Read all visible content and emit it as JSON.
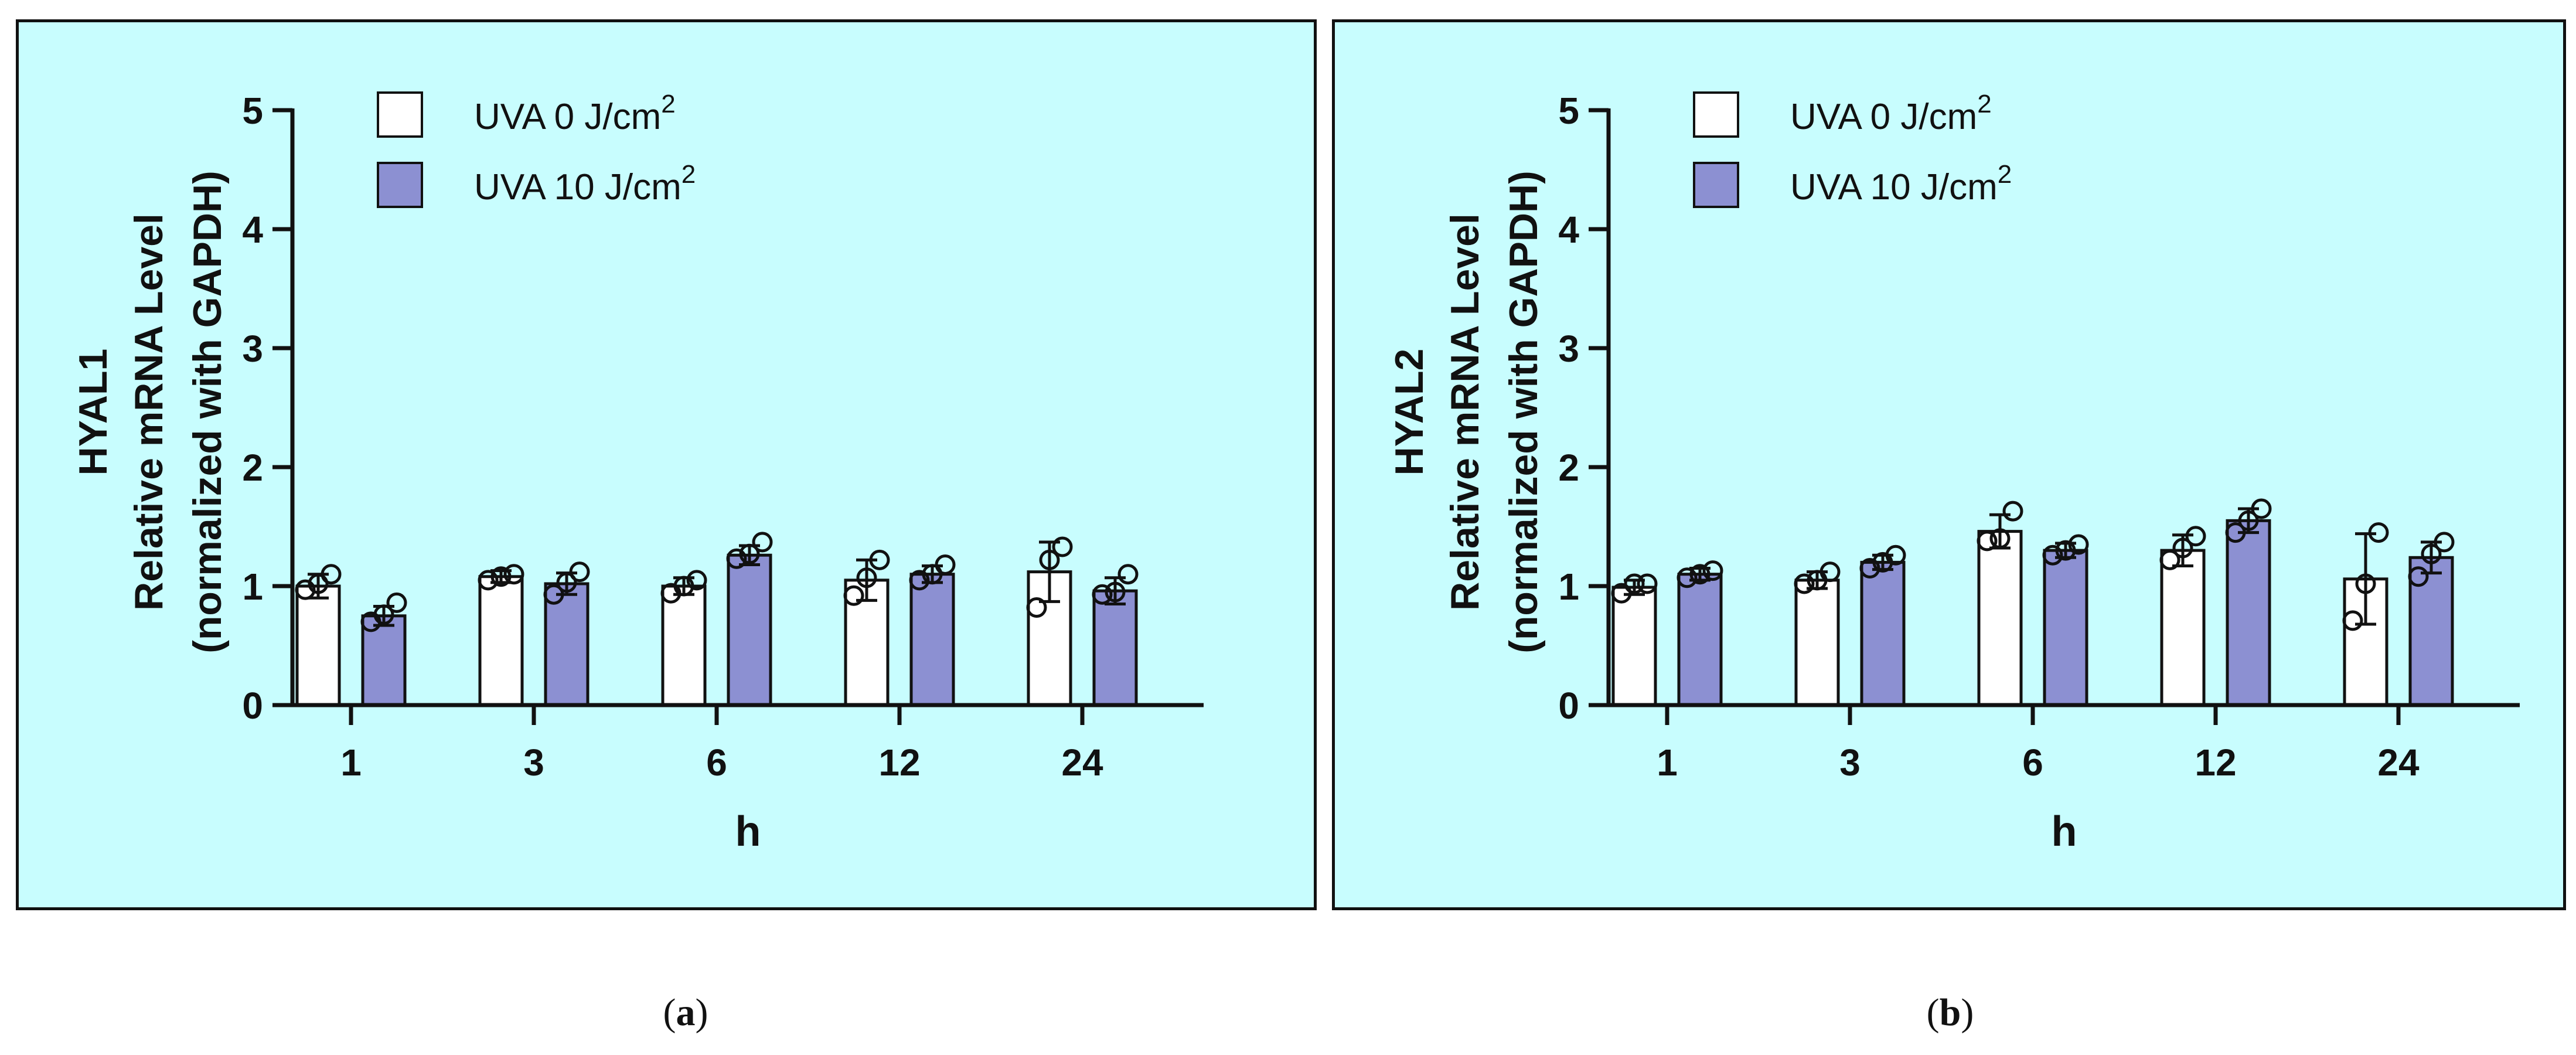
{
  "colors": {
    "panel_background": "#c8fdfe",
    "bar_uva0": "#ffffff",
    "bar_uva10": "#8c90d2",
    "stroke": "#111111"
  },
  "chart_data": [
    {
      "panel_label": "a",
      "type": "bar",
      "ylabel_lines": [
        "HYAL1",
        "Relative mRNA Level",
        "(normalized with GAPDH)"
      ],
      "xlabel": "h",
      "categories": [
        "1",
        "3",
        "6",
        "12",
        "24"
      ],
      "ylim": [
        0,
        5
      ],
      "yticks": [
        "0",
        "1",
        "2",
        "3",
        "4",
        "5"
      ],
      "legend": {
        "placement": "top-left",
        "entries": [
          {
            "label": "UVA 0 J/cm",
            "sup": "2"
          },
          {
            "label": "UVA 10 J/cm",
            "sup": "2"
          }
        ]
      },
      "series": [
        {
          "name": "UVA 0 J/cm2",
          "values": [
            1.0,
            1.08,
            1.0,
            1.05,
            1.12
          ],
          "errors": [
            0.1,
            0.05,
            0.07,
            0.17,
            0.25
          ],
          "points": [
            [
              0.97,
              1.02,
              1.1
            ],
            [
              1.05,
              1.08,
              1.1
            ],
            [
              0.94,
              1.0,
              1.05
            ],
            [
              0.92,
              1.07,
              1.22
            ],
            [
              0.82,
              1.22,
              1.33
            ]
          ]
        },
        {
          "name": "UVA 10 J/cm2",
          "values": [
            0.75,
            1.02,
            1.26,
            1.1,
            0.96
          ],
          "errors": [
            0.08,
            0.09,
            0.08,
            0.07,
            0.11
          ],
          "points": [
            [
              0.7,
              0.76,
              0.86
            ],
            [
              0.93,
              1.03,
              1.12
            ],
            [
              1.23,
              1.27,
              1.37
            ],
            [
              1.05,
              1.1,
              1.18
            ],
            [
              0.93,
              0.95,
              1.1
            ]
          ]
        }
      ]
    },
    {
      "panel_label": "b",
      "type": "bar",
      "ylabel_lines": [
        "HYAL2",
        "Relative mRNA Level",
        "(normalized with GAPDH)"
      ],
      "xlabel": "h",
      "categories": [
        "1",
        "3",
        "6",
        "12",
        "24"
      ],
      "ylim": [
        0,
        5
      ],
      "yticks": [
        "0",
        "1",
        "2",
        "3",
        "4",
        "5"
      ],
      "legend": {
        "placement": "top-left",
        "entries": [
          {
            "label": "UVA 0 J/cm",
            "sup": "2"
          },
          {
            "label": "UVA 10 J/cm",
            "sup": "2"
          }
        ]
      },
      "series": [
        {
          "name": "UVA 0 J/cm2",
          "values": [
            0.99,
            1.05,
            1.46,
            1.3,
            1.06
          ],
          "errors": [
            0.06,
            0.07,
            0.14,
            0.13,
            0.38
          ],
          "points": [
            [
              0.94,
              1.02,
              1.02
            ],
            [
              1.02,
              1.05,
              1.12
            ],
            [
              1.38,
              1.4,
              1.63
            ],
            [
              1.22,
              1.32,
              1.42
            ],
            [
              0.71,
              1.02,
              1.45
            ]
          ]
        },
        {
          "name": "UVA 10 J/cm2",
          "values": [
            1.1,
            1.2,
            1.3,
            1.55,
            1.24
          ],
          "errors": [
            0.05,
            0.06,
            0.06,
            0.1,
            0.13
          ],
          "points": [
            [
              1.07,
              1.1,
              1.13
            ],
            [
              1.15,
              1.2,
              1.26
            ],
            [
              1.26,
              1.3,
              1.35
            ],
            [
              1.45,
              1.55,
              1.65
            ],
            [
              1.08,
              1.27,
              1.37
            ]
          ]
        }
      ]
    }
  ]
}
